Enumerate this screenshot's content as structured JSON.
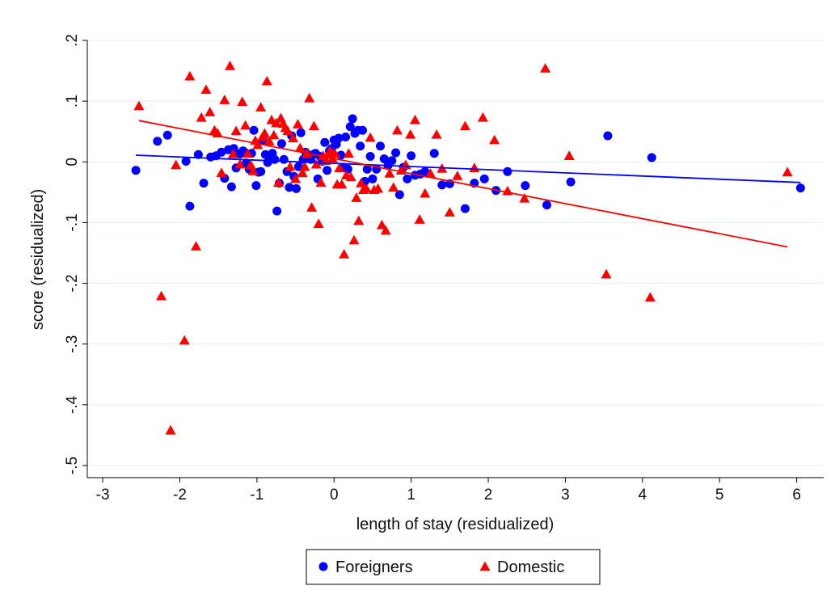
{
  "chart_data": {
    "type": "scatter",
    "xlabel": "length of stay (residualized)",
    "ylabel": "score (residualized)",
    "xlim": [
      -3,
      6
    ],
    "ylim": [
      -0.5,
      0.2
    ],
    "x_ticks": [
      {
        "value": -3,
        "label": "-3"
      },
      {
        "value": -2,
        "label": "-2"
      },
      {
        "value": -1,
        "label": "-1"
      },
      {
        "value": 0,
        "label": "0"
      },
      {
        "value": 1,
        "label": "1"
      },
      {
        "value": 2,
        "label": "2"
      },
      {
        "value": 3,
        "label": "3"
      },
      {
        "value": 4,
        "label": "4"
      },
      {
        "value": 5,
        "label": "5"
      },
      {
        "value": 6,
        "label": "6"
      }
    ],
    "y_ticks": [
      {
        "value": 0.2,
        "label": ".2"
      },
      {
        "value": 0.1,
        "label": ".1"
      },
      {
        "value": 0,
        "label": "0"
      },
      {
        "value": -0.1,
        "label": "-.1"
      },
      {
        "value": -0.2,
        "label": "-.2"
      },
      {
        "value": -0.3,
        "label": "-.3"
      },
      {
        "value": -0.4,
        "label": "-.4"
      },
      {
        "value": -0.5,
        "label": "-.5"
      }
    ],
    "grid": "horizontal",
    "legend_position": "bottom",
    "series": [
      {
        "name": "Foreigners",
        "color": "#0000ff",
        "marker": "circle",
        "points": [
          [
            -2.57,
            -0.014
          ],
          [
            -2.29,
            0.034
          ],
          [
            -2.16,
            0.044
          ],
          [
            -1.92,
            0.001
          ],
          [
            -1.87,
            -0.073
          ],
          [
            -1.76,
            0.012
          ],
          [
            -1.69,
            -0.035
          ],
          [
            -1.6,
            0.008
          ],
          [
            -1.53,
            0.01
          ],
          [
            -1.46,
            0.016
          ],
          [
            -1.42,
            -0.027
          ],
          [
            -1.37,
            0.02
          ],
          [
            -1.33,
            -0.041
          ],
          [
            -1.3,
            0.022
          ],
          [
            -1.27,
            -0.01
          ],
          [
            -1.22,
            0.013
          ],
          [
            -1.18,
            0.018
          ],
          [
            -1.14,
            -0.002
          ],
          [
            -1.1,
            -0.012
          ],
          [
            -1.07,
            0.014
          ],
          [
            -1.04,
            0.052
          ],
          [
            -1.01,
            -0.039
          ],
          [
            -0.98,
            -0.017
          ],
          [
            -0.95,
            -0.016
          ],
          [
            -0.92,
            0.036
          ],
          [
            -0.89,
            0.012
          ],
          [
            -0.86,
            -0.001
          ],
          [
            -0.83,
            0.009
          ],
          [
            -0.8,
            0.014
          ],
          [
            -0.77,
            0.004
          ],
          [
            -0.74,
            -0.081
          ],
          [
            -0.71,
            -0.035
          ],
          [
            -0.68,
            0.03
          ],
          [
            -0.65,
            0.004
          ],
          [
            -0.61,
            -0.016
          ],
          [
            -0.58,
            -0.042
          ],
          [
            -0.55,
            0.043
          ],
          [
            -0.52,
            -0.024
          ],
          [
            -0.49,
            -0.044
          ],
          [
            -0.46,
            -0.008
          ],
          [
            -0.43,
            0.048
          ],
          [
            -0.4,
            0.004
          ],
          [
            -0.37,
            0.016
          ],
          [
            -0.34,
            0.01
          ],
          [
            -0.3,
            0.004
          ],
          [
            -0.27,
            0.012
          ],
          [
            -0.24,
            0.014
          ],
          [
            -0.21,
            -0.028
          ],
          [
            -0.18,
            0.009
          ],
          [
            -0.15,
            0.001
          ],
          [
            -0.12,
            0.032
          ],
          [
            -0.09,
            -0.014
          ],
          [
            -0.06,
            0.018
          ],
          [
            -0.03,
            0.022
          ],
          [
            0.0,
            0.036
          ],
          [
            0.03,
            0.029
          ],
          [
            0.06,
            0.039
          ],
          [
            0.09,
            0.011
          ],
          [
            0.12,
            -0.009
          ],
          [
            0.15,
            0.041
          ],
          [
            0.18,
            -0.012
          ],
          [
            0.21,
            0.058
          ],
          [
            0.24,
            0.071
          ],
          [
            0.27,
            0.047
          ],
          [
            0.31,
            0.052
          ],
          [
            0.34,
            0.026
          ],
          [
            0.37,
            0.052
          ],
          [
            0.4,
            -0.032
          ],
          [
            0.43,
            -0.012
          ],
          [
            0.47,
            0.009
          ],
          [
            0.5,
            -0.028
          ],
          [
            0.55,
            -0.012
          ],
          [
            0.6,
            0.026
          ],
          [
            0.65,
            0.005
          ],
          [
            0.7,
            -0.006
          ],
          [
            0.75,
            0.002
          ],
          [
            0.8,
            0.015
          ],
          [
            0.85,
            -0.054
          ],
          [
            0.9,
            -0.009
          ],
          [
            0.95,
            -0.028
          ],
          [
            1.0,
            0.01
          ],
          [
            1.05,
            -0.022
          ],
          [
            1.12,
            -0.02
          ],
          [
            1.18,
            -0.016
          ],
          [
            1.3,
            0.014
          ],
          [
            1.4,
            -0.038
          ],
          [
            1.5,
            -0.036
          ],
          [
            1.7,
            -0.077
          ],
          [
            1.82,
            -0.035
          ],
          [
            1.95,
            -0.028
          ],
          [
            2.1,
            -0.047
          ],
          [
            2.25,
            -0.016
          ],
          [
            2.48,
            -0.039
          ],
          [
            2.76,
            -0.071
          ],
          [
            3.07,
            -0.033
          ],
          [
            3.55,
            0.043
          ],
          [
            4.12,
            0.007
          ],
          [
            6.05,
            -0.043
          ]
        ],
        "fit": {
          "x": [
            -2.57,
            6.05
          ],
          "y": [
            0.011,
            -0.034
          ]
        }
      },
      {
        "name": "Domestic",
        "color": "#ff0000",
        "marker": "triangle",
        "points": [
          [
            -2.53,
            0.092
          ],
          [
            -2.24,
            -0.221
          ],
          [
            -2.12,
            -0.442
          ],
          [
            -2.05,
            -0.005
          ],
          [
            -1.94,
            -0.294
          ],
          [
            -1.87,
            0.141
          ],
          [
            -1.79,
            -0.139
          ],
          [
            -1.72,
            0.073
          ],
          [
            -1.66,
            0.119
          ],
          [
            -1.61,
            0.082
          ],
          [
            -1.55,
            0.052
          ],
          [
            -1.51,
            0.047
          ],
          [
            -1.46,
            -0.018
          ],
          [
            -1.42,
            0.102
          ],
          [
            -1.35,
            0.158
          ],
          [
            -1.31,
            0.013
          ],
          [
            -1.27,
            0.051
          ],
          [
            -1.22,
            -0.004
          ],
          [
            -1.19,
            0.099
          ],
          [
            -1.15,
            0.06
          ],
          [
            -1.12,
            0.014
          ],
          [
            -1.08,
            -0.005
          ],
          [
            -1.05,
            -0.015
          ],
          [
            -1.02,
            0.035
          ],
          [
            -0.99,
            0.028
          ],
          [
            -0.95,
            0.09
          ],
          [
            -0.93,
            0.041
          ],
          [
            -0.9,
            0.047
          ],
          [
            -0.87,
            0.133
          ],
          [
            -0.84,
            0.034
          ],
          [
            -0.81,
            0.069
          ],
          [
            -0.78,
            0.044
          ],
          [
            -0.75,
            0.064
          ],
          [
            -0.72,
            -0.034
          ],
          [
            -0.69,
            0.072
          ],
          [
            -0.66,
            0.063
          ],
          [
            -0.63,
            0.056
          ],
          [
            -0.6,
            0.051
          ],
          [
            -0.57,
            -0.008
          ],
          [
            -0.53,
            0.039
          ],
          [
            -0.5,
            -0.028
          ],
          [
            -0.47,
            0.062
          ],
          [
            -0.44,
            0.023
          ],
          [
            -0.41,
            -0.018
          ],
          [
            -0.38,
            -0.008
          ],
          [
            -0.35,
            0.014
          ],
          [
            -0.32,
            0.105
          ],
          [
            -0.29,
            -0.075
          ],
          [
            -0.26,
            0.059
          ],
          [
            -0.23,
            -0.004
          ],
          [
            -0.2,
            -0.102
          ],
          [
            -0.17,
            -0.034
          ],
          [
            -0.14,
            0.01
          ],
          [
            -0.11,
            0.002
          ],
          [
            -0.08,
            0.012
          ],
          [
            -0.05,
            0.018
          ],
          [
            -0.02,
            0.006
          ],
          [
            0.01,
            0.014
          ],
          [
            0.04,
            -0.037
          ],
          [
            0.07,
            -0.01
          ],
          [
            0.1,
            -0.037
          ],
          [
            0.13,
            -0.152
          ],
          [
            0.16,
            -0.022
          ],
          [
            0.19,
            0.014
          ],
          [
            0.22,
            -0.025
          ],
          [
            0.26,
            -0.129
          ],
          [
            0.29,
            -0.059
          ],
          [
            0.32,
            -0.097
          ],
          [
            0.35,
            -0.035
          ],
          [
            0.38,
            -0.046
          ],
          [
            0.42,
            -0.044
          ],
          [
            0.47,
            0.04
          ],
          [
            0.52,
            -0.046
          ],
          [
            0.57,
            -0.044
          ],
          [
            0.62,
            -0.104
          ],
          [
            0.67,
            -0.113
          ],
          [
            0.72,
            -0.019
          ],
          [
            0.77,
            -0.042
          ],
          [
            0.82,
            0.052
          ],
          [
            0.87,
            -0.014
          ],
          [
            0.93,
            -0.005
          ],
          [
            0.99,
            0.045
          ],
          [
            1.05,
            0.069
          ],
          [
            1.11,
            -0.095
          ],
          [
            1.18,
            -0.052
          ],
          [
            1.25,
            -0.019
          ],
          [
            1.33,
            0.045
          ],
          [
            1.4,
            -0.011
          ],
          [
            1.5,
            -0.083
          ],
          [
            1.6,
            -0.023
          ],
          [
            1.7,
            0.059
          ],
          [
            1.82,
            -0.01
          ],
          [
            1.93,
            0.073
          ],
          [
            2.08,
            0.036
          ],
          [
            2.25,
            -0.048
          ],
          [
            2.47,
            -0.06
          ],
          [
            2.74,
            0.154
          ],
          [
            3.05,
            0.01
          ],
          [
            3.53,
            -0.185
          ],
          [
            4.1,
            -0.223
          ],
          [
            5.88,
            -0.017
          ]
        ],
        "fit": {
          "x": [
            -2.53,
            5.88
          ],
          "y": [
            0.068,
            -0.14
          ]
        }
      }
    ]
  }
}
